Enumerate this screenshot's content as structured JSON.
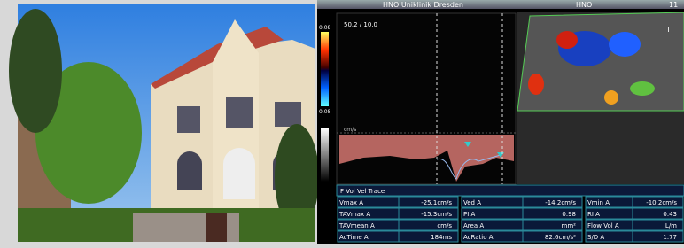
{
  "header": {
    "title": "HNO Uniklinik Dresden",
    "dept": "HNO",
    "number": "11"
  },
  "display": {
    "scale": "50.2 / 10.0",
    "color_top": "0.08",
    "color_bottom": "0.08",
    "velocity_unit": "cm/s",
    "marker": "T"
  },
  "table": {
    "title": "F Vol Vel Trace",
    "rows": [
      [
        [
          "Vmax A",
          "-25.1cm/s"
        ],
        [
          "Ved A",
          "-14.2cm/s"
        ],
        [
          "Vmin A",
          "-10.2cm/s"
        ]
      ],
      [
        [
          "TAVmax A",
          "-15.3cm/s"
        ],
        [
          "PI A",
          "0.98"
        ],
        [
          "RI A",
          "0.43"
        ]
      ],
      [
        [
          "TAVmean A",
          "cm/s"
        ],
        [
          "Area A",
          "mm²"
        ],
        [
          "Flow Vol A",
          "L/m"
        ]
      ],
      [
        [
          "AcTime A",
          "184ms"
        ],
        [
          "AcRatio A",
          "82.6cm/s²"
        ],
        [
          "S/D A",
          "1.77"
        ]
      ]
    ]
  }
}
